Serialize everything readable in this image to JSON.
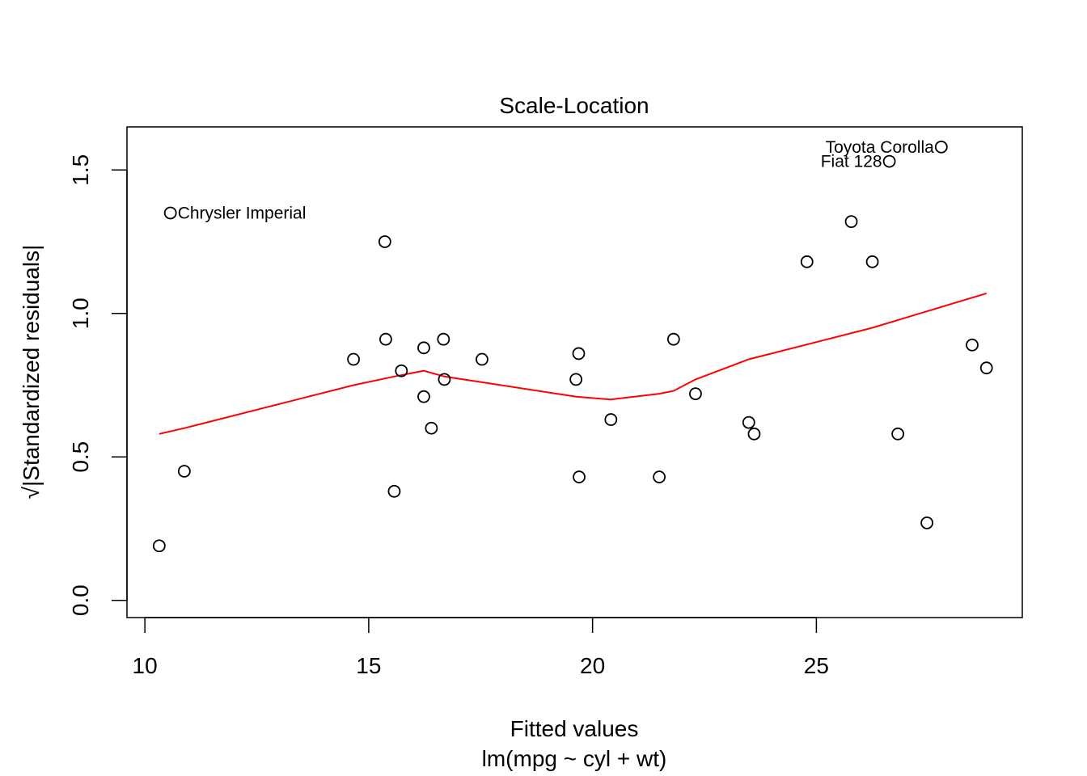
{
  "chart_data": {
    "type": "scatter",
    "title": "Scale-Location",
    "xlabel": "Fitted values",
    "subtitle": "lm(mpg ~ cyl + wt)",
    "ylabel": "√|Standardized residuals|",
    "xlim": [
      9.6,
      29.6
    ],
    "ylim": [
      -0.06,
      1.65
    ],
    "x_ticks": [
      10,
      15,
      20,
      25
    ],
    "x_tick_labels": [
      "10",
      "15",
      "20",
      "25"
    ],
    "y_ticks": [
      0.0,
      0.5,
      1.0,
      1.5
    ],
    "y_tick_labels": [
      "0.0",
      "0.5",
      "1.0",
      "1.5"
    ],
    "points": [
      {
        "x": 10.32,
        "y": 0.19
      },
      {
        "x": 10.57,
        "y": 1.35,
        "label": "Chrysler Imperial"
      },
      {
        "x": 10.88,
        "y": 0.45
      },
      {
        "x": 14.66,
        "y": 0.84
      },
      {
        "x": 15.36,
        "y": 1.25
      },
      {
        "x": 15.38,
        "y": 0.91
      },
      {
        "x": 15.57,
        "y": 0.38
      },
      {
        "x": 15.73,
        "y": 0.8
      },
      {
        "x": 16.23,
        "y": 0.88
      },
      {
        "x": 16.23,
        "y": 0.71
      },
      {
        "x": 16.4,
        "y": 0.6
      },
      {
        "x": 16.67,
        "y": 0.91
      },
      {
        "x": 16.69,
        "y": 0.77
      },
      {
        "x": 17.53,
        "y": 0.84
      },
      {
        "x": 19.63,
        "y": 0.77
      },
      {
        "x": 19.69,
        "y": 0.86
      },
      {
        "x": 19.7,
        "y": 0.43
      },
      {
        "x": 20.41,
        "y": 0.63
      },
      {
        "x": 21.49,
        "y": 0.43
      },
      {
        "x": 21.81,
        "y": 0.91
      },
      {
        "x": 22.3,
        "y": 0.72
      },
      {
        "x": 23.49,
        "y": 0.62
      },
      {
        "x": 23.61,
        "y": 0.58
      },
      {
        "x": 24.79,
        "y": 1.18
      },
      {
        "x": 25.78,
        "y": 1.32
      },
      {
        "x": 26.25,
        "y": 1.18
      },
      {
        "x": 26.63,
        "y": 1.53,
        "label": "Fiat 128"
      },
      {
        "x": 26.82,
        "y": 0.58
      },
      {
        "x": 27.47,
        "y": 0.27
      },
      {
        "x": 27.79,
        "y": 1.58,
        "label": "Toyota Corolla"
      },
      {
        "x": 28.48,
        "y": 0.89
      },
      {
        "x": 28.8,
        "y": 0.81
      }
    ],
    "smoother": {
      "name": "lowess",
      "color": "#ff0000",
      "x": [
        10.32,
        10.88,
        14.66,
        15.57,
        16.23,
        16.69,
        17.53,
        19.63,
        20.41,
        21.49,
        21.81,
        22.3,
        23.49,
        26.25,
        28.8
      ],
      "y": [
        0.58,
        0.6,
        0.75,
        0.78,
        0.8,
        0.78,
        0.76,
        0.71,
        0.7,
        0.72,
        0.73,
        0.77,
        0.84,
        0.95,
        1.07
      ]
    }
  }
}
